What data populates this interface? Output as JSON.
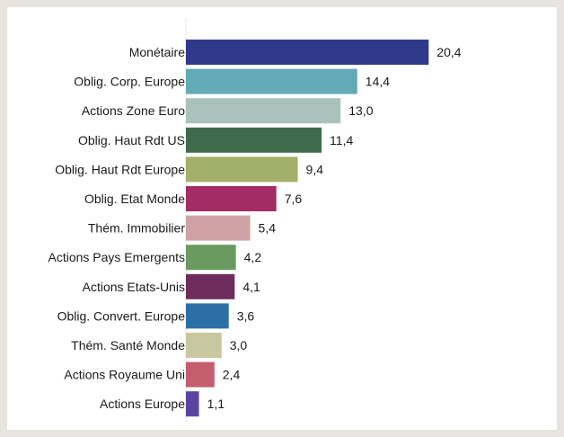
{
  "chart_data": {
    "type": "bar",
    "orientation": "horizontal",
    "title": "",
    "xlabel": "",
    "ylabel": "",
    "grid": false,
    "legend": "none",
    "xlim": [
      0,
      22
    ],
    "categories": [
      "Monétaire",
      "Oblig. Corp. Europe",
      "Actions Zone Euro",
      "Oblig. Haut Rdt US",
      "Oblig. Haut Rdt Europe",
      "Oblig. Etat Monde",
      "Thém. Immobilier",
      "Actions Pays Emergents",
      "Actions Etats-Unis",
      "Oblig. Convert. Europe",
      "Thém. Santé Monde",
      "Actions Royaume Uni",
      "Actions Europe"
    ],
    "values": [
      20.4,
      14.4,
      13.0,
      11.4,
      9.4,
      7.6,
      5.4,
      4.2,
      4.1,
      3.6,
      3.0,
      2.4,
      1.1
    ],
    "value_labels": [
      "20,4",
      "14,4",
      "13,0",
      "11,4",
      "9,4",
      "7,6",
      "5,4",
      "4,2",
      "4,1",
      "3,6",
      "3,0",
      "2,4",
      "1,1"
    ],
    "colors": [
      "#2f3a8a",
      "#62abb6",
      "#a9c2bc",
      "#3d6b4b",
      "#a3b06a",
      "#a32c64",
      "#cfa3a5",
      "#6a9a60",
      "#6e2d5c",
      "#2b6fa6",
      "#c9c79f",
      "#c45e6e",
      "#5a46a0"
    ],
    "axis_color": "#e6e6e6"
  }
}
